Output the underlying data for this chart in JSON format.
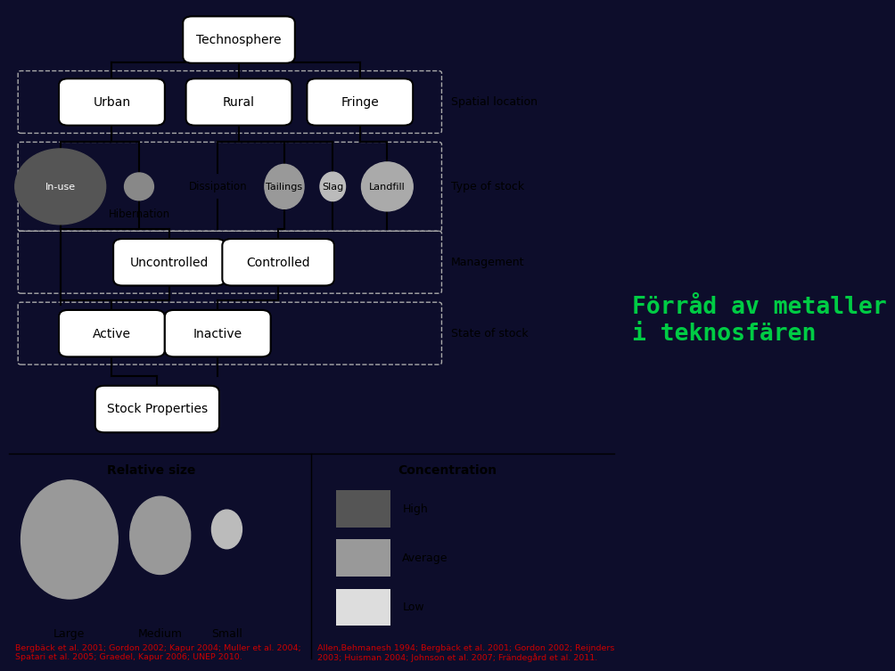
{
  "bg_color": "#0d0d2b",
  "main_bg": "#ffffff",
  "title_text": "Förråd av metaller\ni teknosfären",
  "title_color": "#00cc44",
  "ref_left": "Bergbäck et al. 2001; Gordon 2002; Kapur 2004; Muller et al. 2004;\nSpatari et al. 2005; Graedel, Kapur 2006; UNEP 2010.",
  "ref_right": "Allen,Behmanesh 1994; Bergbäck et al. 2001; Gordon 2002; Reijnders\n2003; Huisman 2004; Johnson et al. 2007; Frändegård et al. 2011.",
  "color_high": "#555555",
  "color_avg": "#999999",
  "color_low": "#dddddd",
  "color_inuse": "#555555",
  "color_tailings": "#999999",
  "color_landfill": "#aaaaaa",
  "color_slag": "#bbbbbb"
}
